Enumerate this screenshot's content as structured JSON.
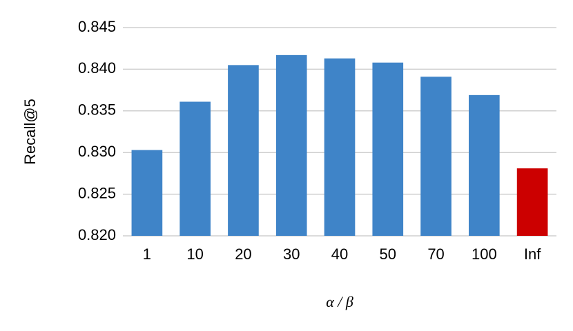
{
  "chart_data": {
    "type": "bar",
    "y_label": "Recall@5",
    "x_label": "α / β",
    "categories": [
      "1",
      "10",
      "20",
      "30",
      "40",
      "50",
      "70",
      "100",
      "Inf"
    ],
    "values": [
      0.8303,
      0.8361,
      0.8405,
      0.8417,
      0.8413,
      0.8408,
      0.8391,
      0.8369,
      0.8281
    ],
    "colors": [
      "#3f84c8",
      "#3f84c8",
      "#3f84c8",
      "#3f84c8",
      "#3f84c8",
      "#3f84c8",
      "#3f84c8",
      "#3f84c8",
      "#cc0000"
    ],
    "ylim": [
      0.82,
      0.845
    ],
    "yticks": [
      {
        "value": 0.82,
        "label": "0.820"
      },
      0.825,
      {
        "value": 0.83,
        "label": "0.830"
      },
      0.835,
      {
        "value": 0.84,
        "label": "0.840"
      },
      0.845
    ],
    "grid": true
  }
}
